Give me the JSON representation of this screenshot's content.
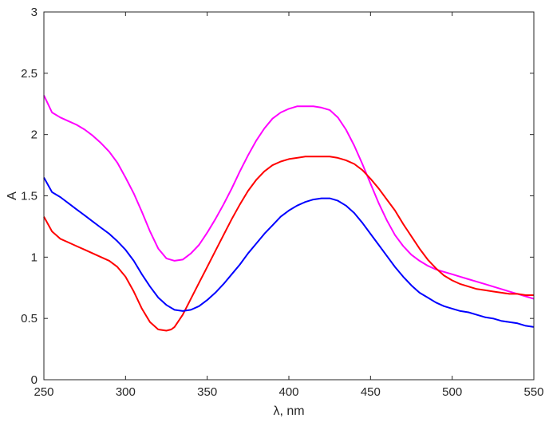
{
  "chart_data": {
    "type": "line",
    "xlabel": "λ, nm",
    "ylabel": "A",
    "xlim": [
      250,
      550
    ],
    "ylim": [
      0,
      3
    ],
    "xticks": [
      "250",
      "300",
      "350",
      "400",
      "450",
      "500",
      "550"
    ],
    "yticks": [
      "0",
      "0.5",
      "1",
      "1.5",
      "2",
      "2.5",
      "3"
    ],
    "grid": false,
    "series": [
      {
        "color": "#ff00ff",
        "x": [
          250,
          255,
          260,
          265,
          270,
          275,
          280,
          285,
          290,
          295,
          300,
          305,
          310,
          315,
          320,
          325,
          330,
          335,
          340,
          345,
          350,
          355,
          360,
          365,
          370,
          375,
          380,
          385,
          390,
          395,
          400,
          405,
          410,
          415,
          420,
          425,
          430,
          435,
          440,
          445,
          450,
          455,
          460,
          465,
          470,
          475,
          480,
          485,
          490,
          495,
          500,
          505,
          510,
          515,
          520,
          525,
          530,
          535,
          540,
          545,
          550
        ],
        "y": [
          2.32,
          2.18,
          2.14,
          2.11,
          2.08,
          2.04,
          1.99,
          1.93,
          1.86,
          1.77,
          1.65,
          1.52,
          1.37,
          1.21,
          1.07,
          0.99,
          0.97,
          0.98,
          1.03,
          1.1,
          1.2,
          1.31,
          1.43,
          1.56,
          1.7,
          1.83,
          1.95,
          2.05,
          2.13,
          2.18,
          2.21,
          2.23,
          2.23,
          2.23,
          2.22,
          2.2,
          2.14,
          2.04,
          1.91,
          1.76,
          1.6,
          1.44,
          1.3,
          1.18,
          1.09,
          1.02,
          0.97,
          0.93,
          0.9,
          0.88,
          0.86,
          0.84,
          0.82,
          0.8,
          0.78,
          0.76,
          0.74,
          0.72,
          0.7,
          0.68,
          0.66
        ]
      },
      {
        "color": "#ff0000",
        "x": [
          250,
          255,
          260,
          265,
          270,
          275,
          280,
          285,
          290,
          295,
          300,
          305,
          310,
          315,
          320,
          325,
          328,
          330,
          335,
          340,
          345,
          350,
          355,
          360,
          365,
          370,
          375,
          380,
          385,
          390,
          395,
          400,
          405,
          410,
          415,
          420,
          425,
          430,
          435,
          440,
          445,
          450,
          455,
          460,
          465,
          470,
          475,
          480,
          485,
          490,
          495,
          500,
          505,
          510,
          515,
          520,
          525,
          530,
          535,
          540,
          545,
          550
        ],
        "y": [
          1.33,
          1.21,
          1.15,
          1.12,
          1.09,
          1.06,
          1.03,
          1.0,
          0.97,
          0.92,
          0.84,
          0.72,
          0.58,
          0.47,
          0.41,
          0.4,
          0.41,
          0.43,
          0.53,
          0.66,
          0.79,
          0.92,
          1.05,
          1.18,
          1.31,
          1.43,
          1.54,
          1.63,
          1.7,
          1.75,
          1.78,
          1.8,
          1.81,
          1.82,
          1.82,
          1.82,
          1.82,
          1.81,
          1.79,
          1.76,
          1.71,
          1.64,
          1.56,
          1.47,
          1.38,
          1.27,
          1.17,
          1.07,
          0.98,
          0.91,
          0.85,
          0.81,
          0.78,
          0.76,
          0.74,
          0.73,
          0.72,
          0.71,
          0.7,
          0.7,
          0.69,
          0.69
        ]
      },
      {
        "color": "#0000ff",
        "x": [
          250,
          255,
          260,
          265,
          270,
          275,
          280,
          285,
          290,
          295,
          300,
          305,
          310,
          315,
          320,
          325,
          330,
          335,
          340,
          345,
          350,
          355,
          360,
          365,
          370,
          375,
          380,
          385,
          390,
          395,
          400,
          405,
          410,
          415,
          420,
          425,
          430,
          435,
          440,
          445,
          450,
          455,
          460,
          465,
          470,
          475,
          480,
          485,
          490,
          495,
          500,
          505,
          510,
          515,
          520,
          525,
          530,
          535,
          540,
          545,
          550
        ],
        "y": [
          1.65,
          1.53,
          1.49,
          1.44,
          1.39,
          1.34,
          1.29,
          1.24,
          1.19,
          1.13,
          1.06,
          0.97,
          0.86,
          0.76,
          0.67,
          0.61,
          0.57,
          0.56,
          0.57,
          0.6,
          0.65,
          0.71,
          0.78,
          0.86,
          0.94,
          1.03,
          1.11,
          1.19,
          1.26,
          1.33,
          1.38,
          1.42,
          1.45,
          1.47,
          1.48,
          1.48,
          1.46,
          1.42,
          1.36,
          1.28,
          1.19,
          1.1,
          1.01,
          0.92,
          0.84,
          0.77,
          0.71,
          0.67,
          0.63,
          0.6,
          0.58,
          0.56,
          0.55,
          0.53,
          0.51,
          0.5,
          0.48,
          0.47,
          0.46,
          0.44,
          0.43
        ]
      }
    ]
  }
}
